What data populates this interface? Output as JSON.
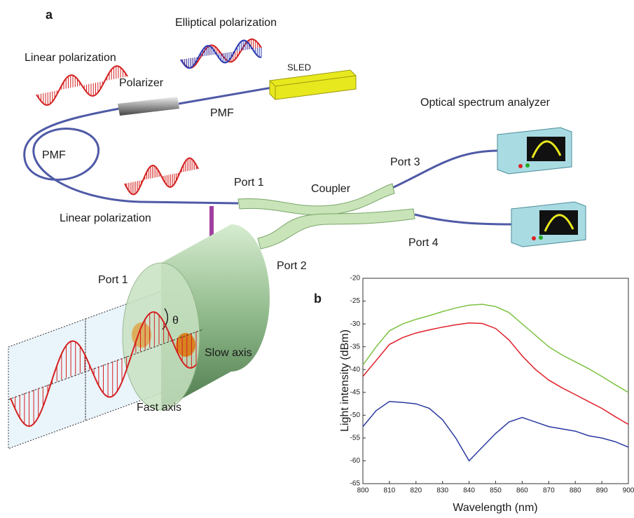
{
  "panel_a": {
    "label": "a",
    "texts": [
      "Elliptical polarization",
      "Linear polarization",
      "Polarizer",
      "SLED",
      "PMF",
      "PMF",
      "Optical spectrum analyzer",
      "Port 3",
      "Port 1",
      "Coupler",
      "Linear polarization",
      "Port 4",
      "Port 2",
      "Port 1",
      "θ",
      "Slow axis",
      "Fast axis"
    ]
  },
  "chart_data": {
    "type": "line",
    "panel_label": "b",
    "x_label": "Wavelength (nm)",
    "y_label": "Light intensity (dBm)",
    "x": [
      800,
      805,
      810,
      815,
      820,
      825,
      830,
      835,
      840,
      845,
      850,
      855,
      860,
      865,
      870,
      875,
      880,
      885,
      890,
      895,
      900
    ],
    "series": [
      {
        "color": "#7dc242",
        "values": [
          -39,
          -35,
          -31.5,
          -30,
          -29,
          -28.2,
          -27.3,
          -26.5,
          -25.9,
          -25.7,
          -26.2,
          -27.5,
          -30,
          -32.5,
          -35,
          -36.8,
          -38.3,
          -39.8,
          -41.5,
          -43.3,
          -45
        ]
      },
      {
        "color": "#e0202a",
        "values": [
          -41.5,
          -38,
          -34.5,
          -33,
          -32,
          -31.3,
          -30.7,
          -30.2,
          -29.8,
          -29.9,
          -31,
          -33.5,
          -37,
          -40,
          -42.3,
          -44,
          -45.5,
          -47,
          -48.5,
          -50.3,
          -52
        ]
      },
      {
        "color": "#2a3aa0",
        "values": [
          -52.5,
          -49,
          -47,
          -47.2,
          -47.5,
          -48.5,
          -51,
          -55,
          -60,
          -57,
          -54,
          -51.5,
          -50.5,
          -51.5,
          -52.5,
          -53,
          -53.5,
          -54.5,
          -55,
          -55.8,
          -57
        ]
      }
    ],
    "xlim": [
      800,
      900
    ],
    "xticks": [
      800,
      810,
      820,
      830,
      840,
      850,
      860,
      870,
      880,
      890,
      900
    ],
    "ylim": [
      -65,
      -20
    ],
    "yticks": [
      -65,
      -60,
      -55,
      -50,
      -45,
      -40,
      -35,
      -30,
      -25,
      -20
    ]
  }
}
